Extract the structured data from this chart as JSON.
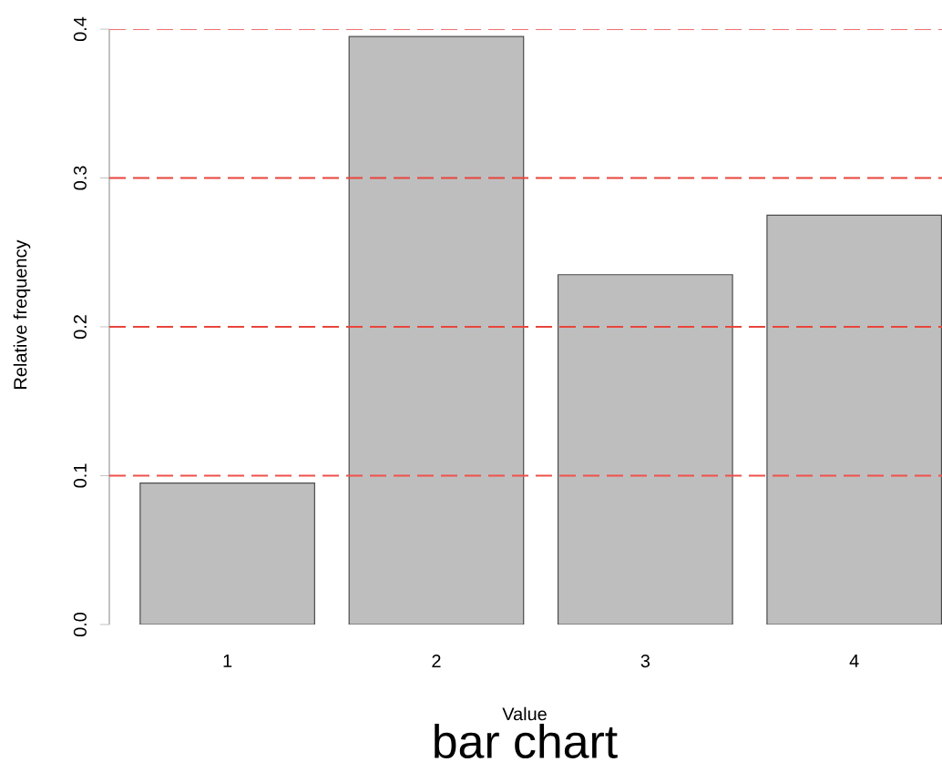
{
  "chart_data": {
    "type": "bar",
    "title": "bar chart",
    "xlabel": "Value",
    "ylabel": "Relative frequency",
    "categories": [
      "1",
      "2",
      "3",
      "4"
    ],
    "values": [
      0.095,
      0.395,
      0.235,
      0.275
    ],
    "color": "#bebebe",
    "ylim": [
      0,
      0.4
    ],
    "yticks": [
      {
        "value": 0,
        "label": "0.0"
      },
      0.1,
      0.2,
      0.3,
      0.4
    ],
    "grid": false,
    "ref_lines": [
      {
        "axis": "y",
        "value": 0.1,
        "color": "#f0504a",
        "line_style": "dashed"
      },
      {
        "axis": "y",
        "value": 0.2,
        "color": "#e8453c",
        "line_style": "dashed"
      },
      {
        "axis": "y",
        "value": 0.3,
        "color": "#e8453c",
        "line_style": "dashed"
      },
      {
        "axis": "y",
        "value": 0.4,
        "color": "#f07070",
        "line_style": "dashed"
      }
    ]
  }
}
